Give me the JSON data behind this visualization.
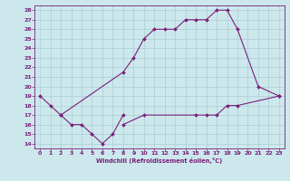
{
  "xlabel": "Windchill (Refroidissement éolien,°C)",
  "bg_color": "#cce8ec",
  "line_color": "#7b1f7b",
  "grid_color": "#aacdd4",
  "xlim": [
    -0.5,
    23.5
  ],
  "ylim": [
    13.5,
    28.5
  ],
  "xticks": [
    0,
    1,
    2,
    3,
    4,
    5,
    6,
    7,
    8,
    9,
    10,
    11,
    12,
    13,
    14,
    15,
    16,
    17,
    18,
    19,
    20,
    21,
    22,
    23
  ],
  "yticks": [
    14,
    15,
    16,
    17,
    18,
    19,
    20,
    21,
    22,
    23,
    24,
    25,
    26,
    27,
    28
  ],
  "line1_x": [
    0,
    1,
    2,
    3,
    4,
    5,
    6,
    7,
    8
  ],
  "line1_y": [
    19,
    18,
    17,
    16,
    16,
    15,
    14,
    15,
    17
  ],
  "line2_x": [
    2,
    8,
    9,
    10,
    11,
    12,
    13,
    14,
    15,
    16,
    17,
    18,
    19,
    21,
    23
  ],
  "line2_y": [
    17,
    21.5,
    23,
    25,
    26,
    26,
    26,
    27,
    27,
    27,
    28,
    28,
    26,
    20,
    19
  ],
  "line3_x": [
    8,
    10,
    15,
    16,
    17,
    18,
    19,
    23
  ],
  "line3_y": [
    16,
    17,
    17,
    17,
    17,
    18,
    18,
    19
  ]
}
